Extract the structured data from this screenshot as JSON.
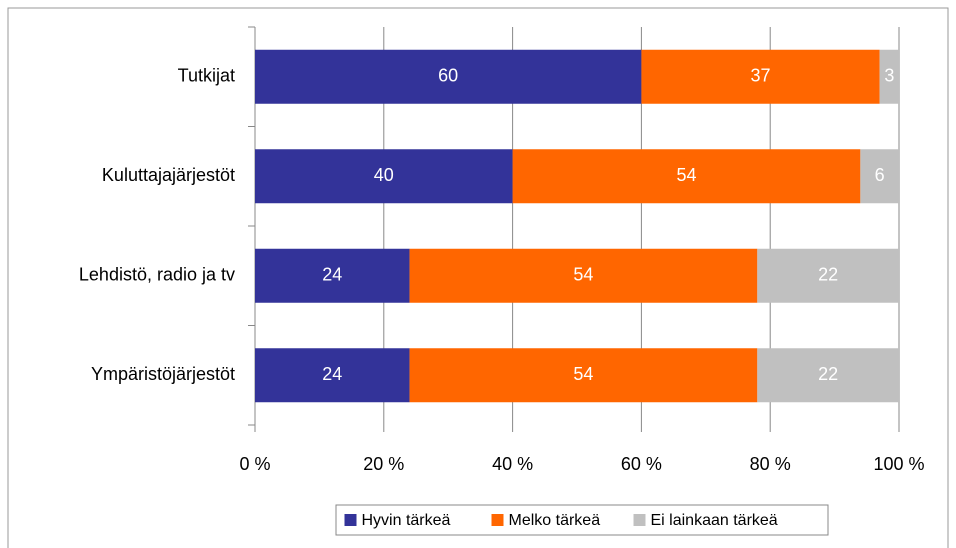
{
  "chart_data": {
    "type": "stacked_bar_horizontal",
    "categories": [
      "Tutkijat",
      "Kuluttajajärjestöt",
      "Lehdistö, radio ja tv",
      "Ympäristöjärjestöt"
    ],
    "series": [
      {
        "name": "Hyvin tärkeä",
        "color": "#333399",
        "values": [
          60,
          40,
          24,
          24
        ]
      },
      {
        "name": "Melko tärkeä",
        "color": "#ff6600",
        "values": [
          37,
          54,
          54,
          54
        ]
      },
      {
        "name": "Ei lainkaan tärkeä",
        "color": "#c0c0c0",
        "values": [
          3,
          6,
          22,
          22
        ]
      }
    ],
    "xlim": [
      0,
      100
    ],
    "xticks": [
      {
        "value": 0,
        "label": "0 %"
      },
      {
        "value": 20,
        "label": "20 %"
      },
      {
        "value": 40,
        "label": "40 %"
      },
      {
        "value": 60,
        "label": "60 %"
      },
      {
        "value": 80,
        "label": "80 %"
      },
      {
        "value": 100,
        "label": "100 %"
      }
    ],
    "grid": true,
    "legend": "bottom"
  }
}
